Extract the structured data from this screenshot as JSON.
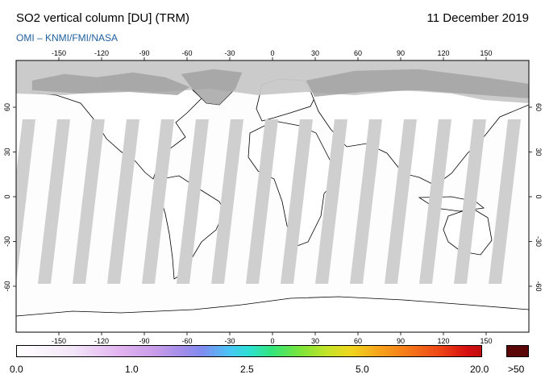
{
  "header": {
    "title": "SO2 vertical column [DU] (TRM)",
    "date": "11 December 2019",
    "credit": "OMI  –  KNMI/FMI/NASA"
  },
  "map": {
    "lon_ticks_top": [
      "-150",
      "-120",
      "-90",
      "-60",
      "-30",
      "0",
      "30",
      "60",
      "90",
      "120",
      "150"
    ],
    "lon_ticks_bottom": [
      "-150",
      "-120",
      "-90",
      "-60",
      "-30",
      "0",
      "30",
      "60",
      "90",
      "120",
      "150"
    ],
    "lat_ticks_left": [
      "60",
      "30",
      "0",
      "-30",
      "-60"
    ],
    "lat_ticks_right": [
      "60",
      "30",
      "0",
      "-30",
      "-60"
    ],
    "colors": {
      "no_data": "#c8c8c8",
      "land_no_data": "#a0a0a0",
      "ocean": "#fdfdfd",
      "coast": "#000000"
    }
  },
  "colorbar": {
    "labels": [
      "0.0",
      "1.0",
      "2.5",
      "5.0",
      "20.0"
    ],
    "overflow_label": ">50",
    "overflow_color": "#5c0707"
  }
}
